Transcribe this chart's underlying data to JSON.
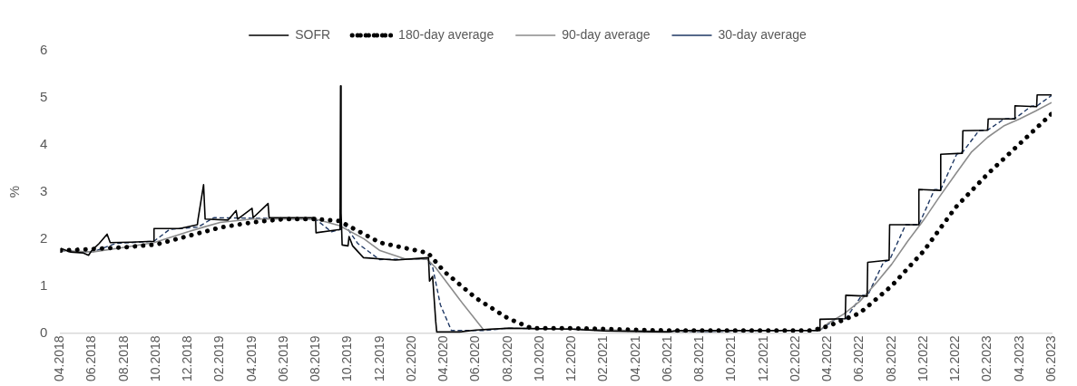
{
  "chart_data": {
    "type": "line",
    "ylabel": "%",
    "ylim": [
      0,
      6
    ],
    "yticks": [
      0,
      1,
      2,
      3,
      4,
      5,
      6
    ],
    "xlim": [
      "2018-04",
      "2023-06"
    ],
    "xticks": [
      {
        "value": "2018-04",
        "label": "04.2018"
      },
      {
        "value": "2018-06",
        "label": "06.2018"
      },
      {
        "value": "2018-08",
        "label": "08.2018"
      },
      {
        "value": "2018-10",
        "label": "10.2018"
      },
      {
        "value": "2018-12",
        "label": "12.2018"
      },
      {
        "value": "2019-02",
        "label": "02.2019"
      },
      {
        "value": "2019-04",
        "label": "04.2019"
      },
      {
        "value": "2019-06",
        "label": "06.2019"
      },
      {
        "value": "2019-08",
        "label": "08.2019"
      },
      {
        "value": "2019-10",
        "label": "10.2019"
      },
      {
        "value": "2019-12",
        "label": "12.2019"
      },
      {
        "value": "2020-02",
        "label": "02.2020"
      },
      {
        "value": "2020-04",
        "label": "04.2020"
      },
      {
        "value": "2020-06",
        "label": "06.2020"
      },
      {
        "value": "2020-08",
        "label": "08.2020"
      },
      {
        "value": "2020-10",
        "label": "10.2020"
      },
      {
        "value": "2020-12",
        "label": "12.2020"
      },
      {
        "value": "2021-02",
        "label": "02.2021"
      },
      {
        "value": "2021-04",
        "label": "04.2021"
      },
      {
        "value": "2021-06",
        "label": "06.2021"
      },
      {
        "value": "2021-08",
        "label": "08.2021"
      },
      {
        "value": "2021-10",
        "label": "10.2021"
      },
      {
        "value": "2021-12",
        "label": "12.2021"
      },
      {
        "value": "2022-02",
        "label": "02.2022"
      },
      {
        "value": "2022-04",
        "label": "04.2022"
      },
      {
        "value": "2022-06",
        "label": "06.2022"
      },
      {
        "value": "2022-08",
        "label": "08.2022"
      },
      {
        "value": "2022-10",
        "label": "10.2022"
      },
      {
        "value": "2022-12",
        "label": "12.2022"
      },
      {
        "value": "2023-02",
        "label": "02.2023"
      },
      {
        "value": "2023-04",
        "label": "04.2023"
      },
      {
        "value": "2023-06",
        "label": "06.2023"
      }
    ],
    "grid": false,
    "legend": "top",
    "marker": "none",
    "series": [
      {
        "name": "SOFR",
        "color": "#000000",
        "line_style": "solid",
        "x": [
          "2018-04-02",
          "2018-04-20",
          "2018-05-15",
          "2018-05-25",
          "2018-05-31",
          "2018-06-14",
          "2018-06-29",
          "2018-07-05",
          "2018-08-15",
          "2018-09-26",
          "2018-09-27",
          "2018-11-15",
          "2018-12-19",
          "2018-12-20",
          "2018-12-31",
          "2019-01-03",
          "2019-02-15",
          "2019-03-01",
          "2019-03-04",
          "2019-04-01",
          "2019-04-03",
          "2019-05-01",
          "2019-05-03",
          "2019-07-31",
          "2019-08-01",
          "2019-09-16",
          "2019-09-17",
          "2019-09-18",
          "2019-09-20",
          "2019-10-01",
          "2019-10-03",
          "2019-10-10",
          "2019-10-31",
          "2019-12-31",
          "2020-03-02",
          "2020-03-04",
          "2020-03-10",
          "2020-03-16",
          "2020-03-18",
          "2020-04-30",
          "2020-06-01",
          "2020-08-01",
          "2020-12-01",
          "2021-02-01",
          "2021-06-01",
          "2021-06-17",
          "2022-03-16",
          "2022-03-17",
          "2022-05-04",
          "2022-05-05",
          "2022-06-15",
          "2022-06-16",
          "2022-07-27",
          "2022-07-28",
          "2022-09-21",
          "2022-09-22",
          "2022-11-02",
          "2022-11-03",
          "2022-12-14",
          "2022-12-15",
          "2023-02-01",
          "2023-02-02",
          "2023-03-22",
          "2023-03-23",
          "2023-05-03",
          "2023-05-04",
          "2023-06-01"
        ],
        "values": [
          1.8,
          1.72,
          1.7,
          1.65,
          1.75,
          1.9,
          2.1,
          1.92,
          1.93,
          1.95,
          2.22,
          2.22,
          2.3,
          2.4,
          3.15,
          2.42,
          2.4,
          2.6,
          2.42,
          2.65,
          2.45,
          2.75,
          2.45,
          2.45,
          2.13,
          2.2,
          5.25,
          2.55,
          1.87,
          1.85,
          2.05,
          1.85,
          1.6,
          1.55,
          1.6,
          1.1,
          1.2,
          0.25,
          0.02,
          0.02,
          0.06,
          0.1,
          0.08,
          0.04,
          0.02,
          0.05,
          0.05,
          0.29,
          0.3,
          0.8,
          0.78,
          1.5,
          1.55,
          2.3,
          2.3,
          3.05,
          3.03,
          3.8,
          3.82,
          4.3,
          4.31,
          4.55,
          4.55,
          4.83,
          4.81,
          5.06,
          5.06
        ]
      },
      {
        "name": "180-day average",
        "color": "#000000",
        "line_style": "dotted",
        "x": [
          "2018-04-02",
          "2018-08-01",
          "2018-10-01",
          "2018-12-01",
          "2019-02-01",
          "2019-04-01",
          "2019-06-01",
          "2019-08-01",
          "2019-09-15",
          "2019-10-01",
          "2019-12-01",
          "2020-03-01",
          "2020-04-01",
          "2020-06-01",
          "2020-08-01",
          "2020-09-15",
          "2020-12-01",
          "2021-06-01",
          "2022-03-01",
          "2022-04-01",
          "2022-06-01",
          "2022-08-01",
          "2022-10-01",
          "2022-12-01",
          "2023-02-01",
          "2023-04-01",
          "2023-06-01"
        ],
        "values": [
          1.75,
          1.82,
          1.88,
          2.06,
          2.24,
          2.35,
          2.42,
          2.42,
          2.38,
          2.28,
          1.92,
          1.7,
          1.31,
          0.74,
          0.31,
          0.1,
          0.1,
          0.05,
          0.05,
          0.14,
          0.42,
          1.0,
          1.74,
          2.67,
          3.38,
          4.02,
          4.66
        ]
      },
      {
        "name": "90-day average",
        "color": "#8c8c8c",
        "line_style": "solid",
        "x": [
          "2018-04-02",
          "2018-06-01",
          "2018-08-01",
          "2018-09-27",
          "2018-12-01",
          "2018-12-31",
          "2019-02-01",
          "2019-04-01",
          "2019-07-31",
          "2019-09-15",
          "2019-11-01",
          "2019-12-01",
          "2020-01-20",
          "2020-02-28",
          "2020-03-15",
          "2020-05-01",
          "2020-06-15",
          "2020-08-01",
          "2020-12-01",
          "2021-06-01",
          "2022-03-16",
          "2022-04-01",
          "2022-05-01",
          "2022-06-01",
          "2022-07-01",
          "2022-08-01",
          "2022-09-01",
          "2022-10-01",
          "2022-11-01",
          "2022-12-01",
          "2023-01-01",
          "2023-02-01",
          "2023-03-01",
          "2023-04-01",
          "2023-05-01",
          "2023-06-01"
        ],
        "values": [
          1.75,
          1.72,
          1.82,
          1.92,
          2.15,
          2.25,
          2.35,
          2.42,
          2.42,
          2.28,
          2.0,
          1.75,
          1.57,
          1.57,
          1.4,
          0.7,
          0.07,
          0.1,
          0.08,
          0.03,
          0.05,
          0.2,
          0.4,
          0.67,
          1.05,
          1.46,
          1.95,
          2.4,
          2.9,
          3.38,
          3.85,
          4.16,
          4.4,
          4.55,
          4.72,
          4.9
        ]
      },
      {
        "name": "30-day average",
        "color": "#1f3864",
        "line_style": "dashed",
        "x": [
          "2018-04-02",
          "2018-06-01",
          "2018-07-15",
          "2018-09-27",
          "2018-10-27",
          "2018-12-20",
          "2019-01-20",
          "2019-07-31",
          "2019-08-31",
          "2019-09-17",
          "2019-09-25",
          "2019-10-20",
          "2019-11-30",
          "2020-02-28",
          "2020-03-10",
          "2020-03-25",
          "2020-04-15",
          "2020-06-15",
          "2020-08-01",
          "2020-12-01",
          "2021-06-01",
          "2022-03-16",
          "2022-04-16",
          "2022-05-05",
          "2022-06-05",
          "2022-06-16",
          "2022-07-16",
          "2022-07-28",
          "2022-08-28",
          "2022-09-22",
          "2022-10-22",
          "2022-11-03",
          "2022-12-03",
          "2022-12-15",
          "2023-01-15",
          "2023-02-02",
          "2023-03-02",
          "2023-03-23",
          "2023-04-23",
          "2023-05-04",
          "2023-06-01"
        ],
        "values": [
          1.75,
          1.72,
          1.9,
          1.95,
          2.2,
          2.25,
          2.45,
          2.42,
          2.15,
          2.2,
          2.3,
          1.9,
          1.56,
          1.57,
          1.4,
          0.6,
          0.05,
          0.05,
          0.1,
          0.08,
          0.02,
          0.05,
          0.3,
          0.3,
          0.8,
          0.8,
          1.5,
          1.55,
          2.3,
          2.3,
          3.05,
          3.05,
          3.8,
          3.85,
          4.3,
          4.32,
          4.55,
          4.56,
          4.82,
          4.83,
          5.05
        ]
      }
    ]
  }
}
